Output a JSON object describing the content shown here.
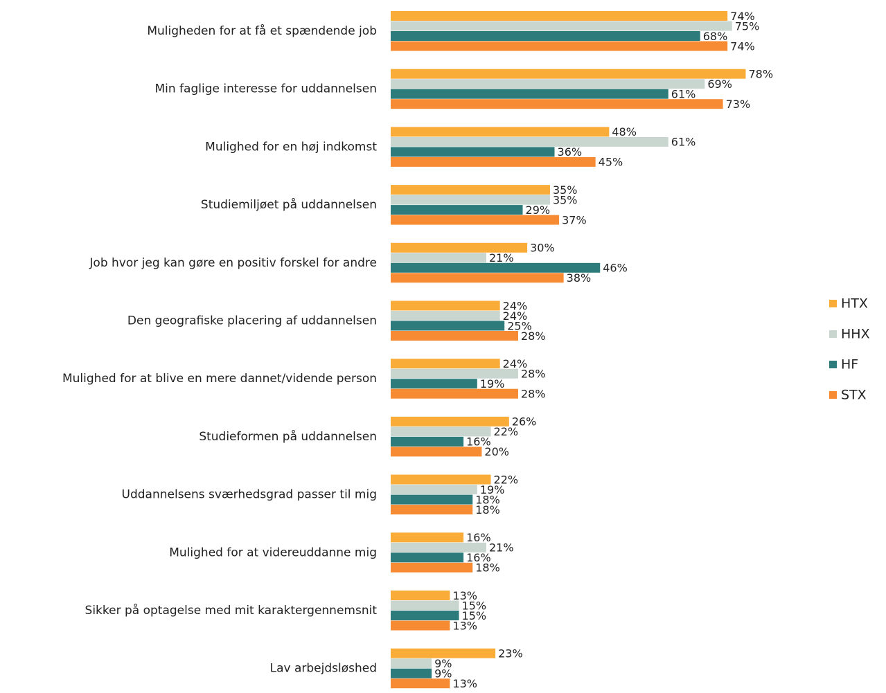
{
  "chart_data": {
    "type": "hbar",
    "categories": [
      "Muligheden for at få et spændende job",
      "Min faglige interesse for uddannelsen",
      "Mulighed for en høj indkomst",
      "Studiemiljøet på uddannelsen",
      "Job hvor jeg kan gøre en positiv forskel for andre",
      "Den geografiske placering af uddannelsen",
      "Mulighed for at blive en mere dannet/vidende person",
      "Studieformen på uddannelsen",
      "Uddannelsens sværhedsgrad passer til mig",
      "Mulighed for at videreuddanne mig",
      "Sikker på optagelse med mit karaktergennemsnit",
      "Lav arbejdsløshed"
    ],
    "series": [
      {
        "name": "HTX",
        "color": "#f9ac38",
        "values": [
          74,
          78,
          48,
          35,
          30,
          24,
          24,
          26,
          22,
          16,
          13,
          23
        ],
        "value_labels": [
          "74%",
          "78%",
          "48%",
          "35%",
          "30%",
          "24%",
          "24%",
          "26%",
          "22%",
          "16%",
          "13%",
          "23%"
        ]
      },
      {
        "name": "HHX",
        "color": "#c9d6cf",
        "values": [
          75,
          69,
          61,
          35,
          21,
          24,
          28,
          22,
          19,
          21,
          15,
          9
        ],
        "value_labels": [
          "75%",
          "69%",
          "61%",
          "35%",
          "21%",
          "24%",
          "28%",
          "22%",
          "19%",
          "21%",
          "15%",
          "9%"
        ]
      },
      {
        "name": "HF",
        "color": "#2e7b7b",
        "values": [
          68,
          61,
          36,
          29,
          46,
          25,
          19,
          16,
          18,
          16,
          15,
          9
        ],
        "value_labels": [
          "68%",
          "61%",
          "36%",
          "29%",
          "46%",
          "25%",
          "19%",
          "16%",
          "18%",
          "16%",
          "15%",
          "9%"
        ]
      },
      {
        "name": "STX",
        "color": "#f78b33",
        "values": [
          74,
          73,
          45,
          37,
          38,
          28,
          28,
          20,
          18,
          18,
          13,
          13
        ],
        "value_labels": [
          "74%",
          "73%",
          "45%",
          "37%",
          "38%",
          "28%",
          "28%",
          "20%",
          "18%",
          "18%",
          "13%",
          "13%"
        ]
      }
    ],
    "legend": "right"
  }
}
